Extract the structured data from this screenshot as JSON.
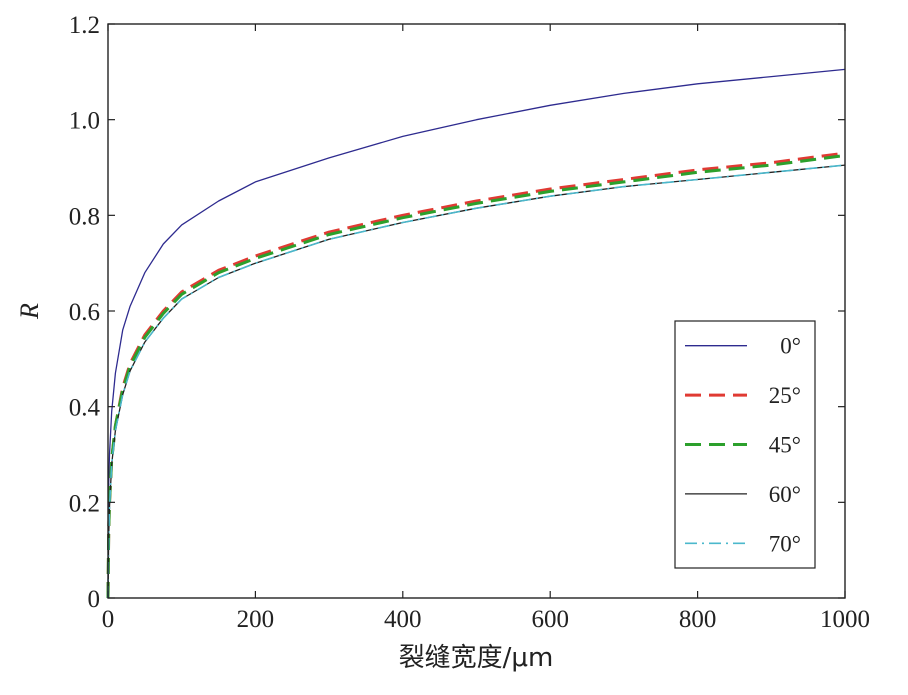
{
  "chart_data": {
    "type": "line",
    "title": "",
    "xlabel": "裂缝宽度/μm",
    "ylabel": "R",
    "xlim": [
      0,
      1000
    ],
    "ylim": [
      0,
      1.2
    ],
    "x_ticks": [
      0,
      200,
      400,
      600,
      800,
      1000
    ],
    "x_tick_labels": [
      "0",
      "200",
      "400",
      "600",
      "800",
      "1000"
    ],
    "y_ticks": [
      0,
      0.2,
      0.4,
      0.6,
      0.8,
      1.0,
      1.2
    ],
    "y_tick_labels": [
      "0",
      "0.2",
      "0.4",
      "0.6",
      "0.8",
      "1.0",
      "1.2"
    ],
    "grid": false,
    "legend_position": "lower-right",
    "x": [
      0,
      1,
      2,
      5,
      10,
      20,
      30,
      50,
      75,
      100,
      150,
      200,
      300,
      400,
      500,
      600,
      700,
      800,
      900,
      1000
    ],
    "series": [
      {
        "name": "0°",
        "color": "#2e2b8f",
        "dash": "solid",
        "values": [
          0,
          0.24,
          0.3,
          0.39,
          0.47,
          0.56,
          0.61,
          0.68,
          0.74,
          0.78,
          0.83,
          0.87,
          0.92,
          0.965,
          1.0,
          1.03,
          1.055,
          1.075,
          1.09,
          1.105
        ]
      },
      {
        "name": "25°",
        "color": "#e03a33",
        "dash": "dashed",
        "values": [
          0,
          0.14,
          0.2,
          0.29,
          0.36,
          0.44,
          0.49,
          0.55,
          0.6,
          0.64,
          0.685,
          0.715,
          0.765,
          0.8,
          0.83,
          0.855,
          0.875,
          0.895,
          0.91,
          0.93
        ]
      },
      {
        "name": "45°",
        "color": "#2ca02c",
        "dash": "dashed",
        "values": [
          0,
          0.14,
          0.2,
          0.29,
          0.36,
          0.435,
          0.485,
          0.545,
          0.595,
          0.635,
          0.68,
          0.71,
          0.76,
          0.795,
          0.825,
          0.85,
          0.87,
          0.89,
          0.905,
          0.925
        ]
      },
      {
        "name": "60°",
        "color": "#222222",
        "dash": "solid",
        "values": [
          0,
          0.13,
          0.19,
          0.28,
          0.35,
          0.425,
          0.475,
          0.535,
          0.585,
          0.625,
          0.67,
          0.7,
          0.75,
          0.785,
          0.815,
          0.84,
          0.86,
          0.875,
          0.89,
          0.905
        ]
      },
      {
        "name": "70°",
        "color": "#4bb8cc",
        "dash": "dashdot",
        "values": [
          0,
          0.13,
          0.19,
          0.28,
          0.35,
          0.425,
          0.475,
          0.535,
          0.585,
          0.625,
          0.67,
          0.7,
          0.75,
          0.785,
          0.815,
          0.84,
          0.86,
          0.875,
          0.89,
          0.905
        ]
      }
    ]
  }
}
